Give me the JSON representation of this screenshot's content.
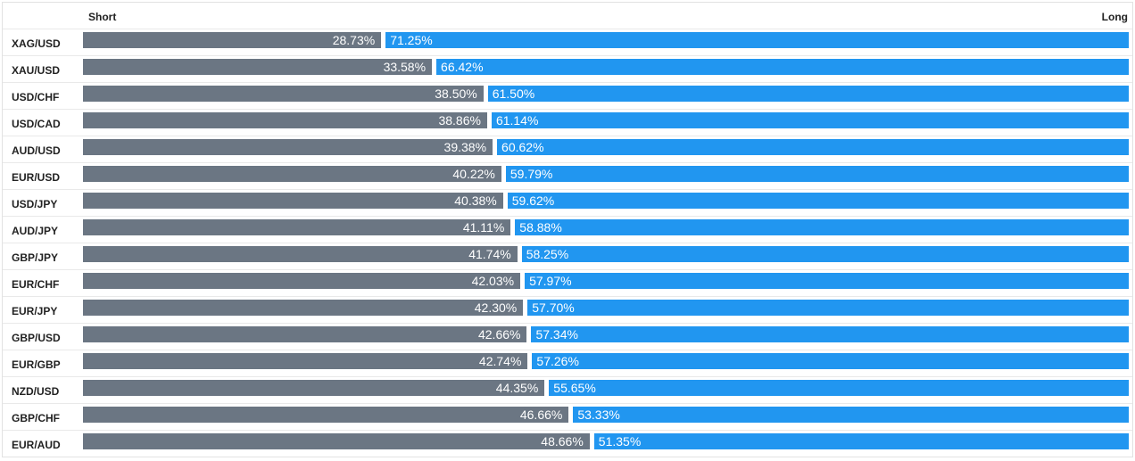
{
  "header": {
    "short_label": "Short",
    "long_label": "Long"
  },
  "colors": {
    "short": "#6b7683",
    "long": "#2196f0"
  },
  "chart_data": {
    "type": "bar",
    "orientation": "horizontal",
    "stacked": true,
    "categories": [
      "XAG/USD",
      "XAU/USD",
      "USD/CHF",
      "USD/CAD",
      "AUD/USD",
      "EUR/USD",
      "USD/JPY",
      "AUD/JPY",
      "GBP/JPY",
      "EUR/CHF",
      "EUR/JPY",
      "GBP/USD",
      "EUR/GBP",
      "NZD/USD",
      "GBP/CHF",
      "EUR/AUD"
    ],
    "series": [
      {
        "name": "Short",
        "values": [
          28.73,
          33.58,
          38.5,
          38.86,
          39.38,
          40.22,
          40.38,
          41.11,
          41.74,
          42.03,
          42.3,
          42.66,
          42.74,
          44.35,
          46.66,
          48.66
        ]
      },
      {
        "name": "Long",
        "values": [
          71.25,
          66.42,
          61.5,
          61.14,
          60.62,
          59.79,
          59.62,
          58.88,
          58.25,
          57.97,
          57.7,
          57.34,
          57.26,
          55.65,
          53.33,
          51.35
        ]
      }
    ],
    "short_labels": [
      "28.73%",
      "33.58%",
      "38.50%",
      "38.86%",
      "39.38%",
      "40.22%",
      "40.38%",
      "41.11%",
      "41.74%",
      "42.03%",
      "42.30%",
      "42.66%",
      "42.74%",
      "44.35%",
      "46.66%",
      "48.66%"
    ],
    "long_labels": [
      "71.25%",
      "66.42%",
      "61.50%",
      "61.14%",
      "60.62%",
      "59.79%",
      "59.62%",
      "58.88%",
      "58.25%",
      "57.97%",
      "57.70%",
      "57.34%",
      "57.26%",
      "55.65%",
      "53.33%",
      "51.35%"
    ],
    "xlim": [
      0,
      100
    ]
  }
}
